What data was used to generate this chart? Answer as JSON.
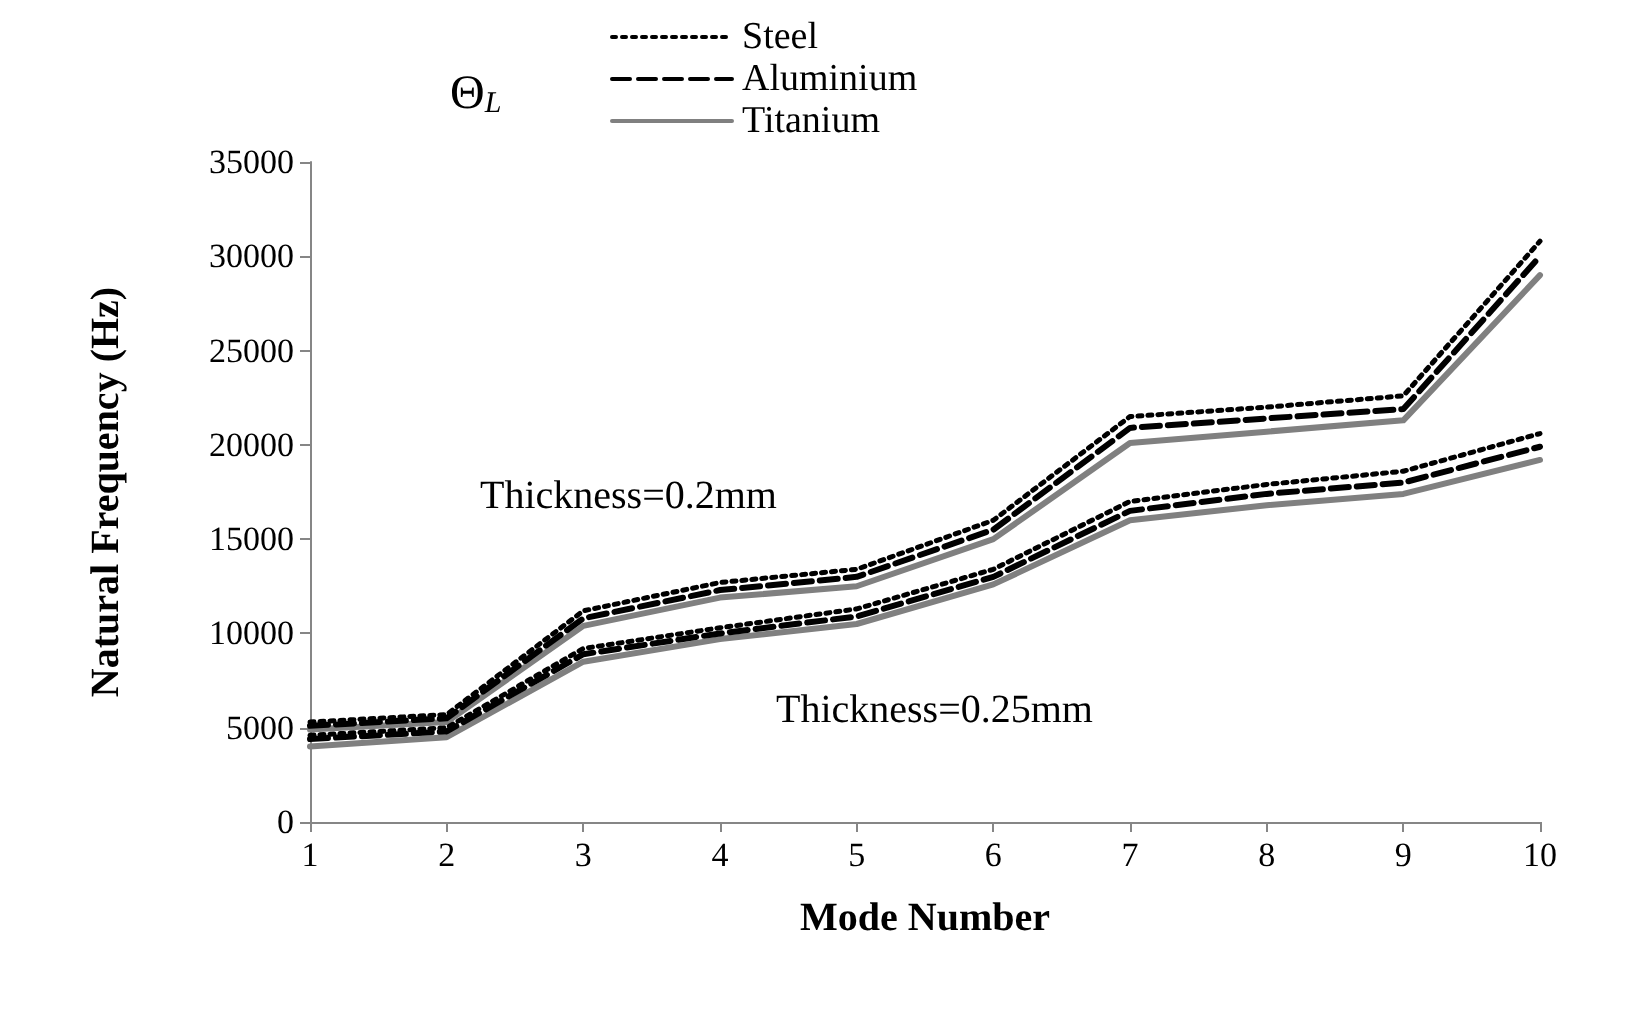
{
  "chart_data": {
    "type": "line",
    "xlabel": "Mode Number",
    "ylabel": "Natural Frequency (Hz)",
    "categories": [
      "1",
      "2",
      "3",
      "4",
      "5",
      "6",
      "7",
      "8",
      "9",
      "10"
    ],
    "series": [
      {
        "name": "Steel",
        "color": "#000000",
        "line_style": "dotted",
        "values": [
          5300,
          5700,
          11200,
          12700,
          13400,
          16000,
          21500,
          22000,
          22600,
          30800
        ]
      },
      {
        "name": "Aluminium",
        "color": "#000000",
        "line_style": "dashed",
        "values": [
          5100,
          5500,
          10800,
          12300,
          13000,
          15500,
          20900,
          21400,
          21900,
          30000
        ]
      },
      {
        "name": "Titanium",
        "color": "#808080",
        "line_style": "solid",
        "values": [
          4900,
          5300,
          10400,
          11900,
          12500,
          15000,
          20100,
          20700,
          21300,
          29000
        ]
      },
      {
        "color": "#000000",
        "line_style": "dotted",
        "values": [
          4600,
          5000,
          9200,
          10300,
          11300,
          13400,
          17000,
          17900,
          18600,
          20600
        ]
      },
      {
        "color": "#000000",
        "line_style": "dashed",
        "values": [
          4400,
          4800,
          8900,
          10000,
          10900,
          13000,
          16500,
          17400,
          18000,
          19900
        ]
      },
      {
        "color": "#808080",
        "line_style": "solid",
        "values": [
          4000,
          4500,
          8500,
          9700,
          10500,
          12600,
          16000,
          16800,
          17400,
          19200
        ]
      }
    ],
    "ylim": [
      0,
      35000
    ],
    "yticks": [
      0,
      5000,
      10000,
      15000,
      20000,
      25000,
      30000,
      35000
    ],
    "grid": false,
    "legend": "top",
    "marker": "none",
    "annotations": [
      "Θ$_{L}$",
      "Thickness=0.2mm",
      "Thickness=0.25mm"
    ]
  }
}
